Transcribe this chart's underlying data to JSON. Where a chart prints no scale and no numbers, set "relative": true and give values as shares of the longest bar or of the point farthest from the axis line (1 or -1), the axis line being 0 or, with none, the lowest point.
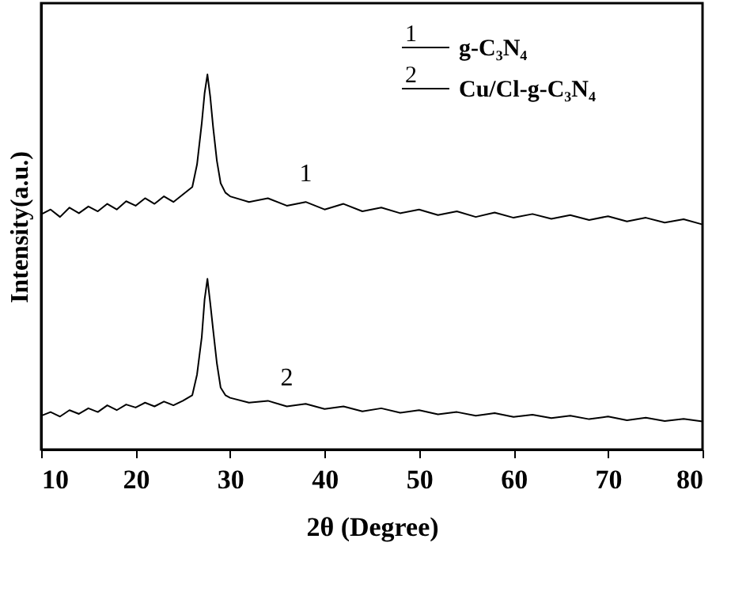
{
  "chart_data": {
    "type": "line",
    "xlabel": "2θ (Degree)",
    "ylabel": "Intensity(a.u.)",
    "relative": true,
    "x": [
      10,
      11,
      12,
      13,
      14,
      15,
      16,
      17,
      18,
      19,
      20,
      21,
      22,
      23,
      24,
      25,
      26,
      26.5,
      27,
      27.3,
      27.6,
      27.9,
      28.2,
      28.6,
      29,
      29.5,
      30,
      32,
      34,
      36,
      38,
      40,
      42,
      44,
      46,
      48,
      50,
      52,
      54,
      56,
      58,
      60,
      62,
      64,
      66,
      68,
      70,
      72,
      74,
      76,
      78,
      80
    ],
    "xlim": [
      10,
      80
    ],
    "xticks": [
      10,
      20,
      30,
      40,
      50,
      60,
      70,
      80
    ],
    "series": [
      {
        "name": "g-C₃N₄",
        "color": "#000000",
        "values": [
          0.627,
          0.64,
          0.62,
          0.645,
          0.63,
          0.648,
          0.635,
          0.655,
          0.64,
          0.662,
          0.65,
          0.67,
          0.655,
          0.675,
          0.66,
          0.68,
          0.7,
          0.76,
          0.87,
          0.95,
          1.0,
          0.94,
          0.86,
          0.77,
          0.71,
          0.685,
          0.675,
          0.66,
          0.67,
          0.65,
          0.66,
          0.64,
          0.655,
          0.635,
          0.645,
          0.63,
          0.64,
          0.625,
          0.635,
          0.62,
          0.632,
          0.618,
          0.628,
          0.615,
          0.625,
          0.612,
          0.622,
          0.608,
          0.618,
          0.605,
          0.614,
          0.6
        ]
      },
      {
        "name": "Cu/Cl-g-C₃N₄",
        "color": "#000000",
        "values": [
          0.09,
          0.1,
          0.088,
          0.105,
          0.095,
          0.11,
          0.1,
          0.118,
          0.105,
          0.12,
          0.112,
          0.125,
          0.115,
          0.128,
          0.118,
          0.13,
          0.145,
          0.2,
          0.3,
          0.4,
          0.455,
          0.39,
          0.32,
          0.23,
          0.165,
          0.145,
          0.138,
          0.125,
          0.13,
          0.115,
          0.122,
          0.108,
          0.115,
          0.102,
          0.11,
          0.098,
          0.105,
          0.094,
          0.1,
          0.09,
          0.097,
          0.087,
          0.093,
          0.084,
          0.09,
          0.081,
          0.088,
          0.078,
          0.085,
          0.076,
          0.082,
          0.075
        ]
      }
    ],
    "annotations": [
      "1",
      "2"
    ],
    "legend": "top right",
    "grid": false
  }
}
